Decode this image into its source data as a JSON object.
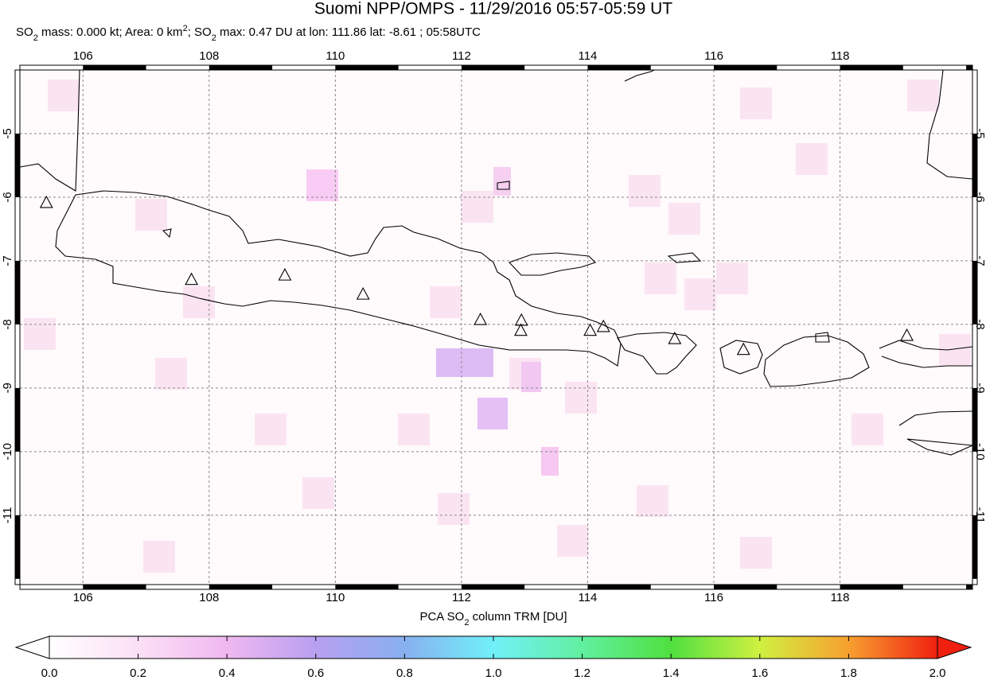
{
  "chart_data": {
    "type": "map",
    "title": "Suomi NPP/OMPS - 11/29/2016 05:57-05:59 UT",
    "subtitle_parts": [
      {
        "text": "SO"
      },
      {
        "text": "2",
        "style": "sub"
      },
      {
        "text": " mass: 0.000 kt; Area: 0 km"
      },
      {
        "text": "2",
        "style": "sup"
      },
      {
        "text": "; SO"
      },
      {
        "text": "2",
        "style": "sub"
      },
      {
        "text": " max: 0.47 DU at lon: 111.86 lat: -8.61 ; 05:58UTC"
      }
    ],
    "xlim": [
      105,
      120.1
    ],
    "ylim": [
      -12.09,
      -4
    ],
    "xticks": [
      106,
      108,
      110,
      112,
      114,
      116,
      118
    ],
    "yticks": [
      -5,
      -6,
      -7,
      -8,
      -9,
      -10,
      -11
    ],
    "grid": true,
    "volcanoes": {
      "lon": [
        105.42,
        107.72,
        109.2,
        110.44,
        112.3,
        112.95,
        112.94,
        114.04,
        114.25,
        115.38,
        116.47,
        119.06
      ],
      "lat": [
        -6.1,
        -7.31,
        -7.24,
        -7.54,
        -7.94,
        -7.95,
        -8.11,
        -8.11,
        -8.05,
        -8.24,
        -8.41,
        -8.19
      ]
    },
    "colorbar": {
      "label_parts": [
        {
          "text": "PCA SO"
        },
        {
          "text": "2",
          "style": "sub"
        },
        {
          "text": " column TRM [DU]"
        }
      ],
      "lim": [
        0,
        2
      ],
      "ticks": [
        {
          "value": 0,
          "label": "0.0"
        },
        {
          "value": 0.2,
          "label": "0.2"
        },
        {
          "value": 0.4,
          "label": "0.4"
        },
        {
          "value": 0.6,
          "label": "0.6"
        },
        {
          "value": 0.8,
          "label": "0.8"
        },
        {
          "value": 1,
          "label": "1.0"
        },
        {
          "value": 1.2,
          "label": "1.2"
        },
        {
          "value": 1.4,
          "label": "1.4"
        },
        {
          "value": 1.6,
          "label": "1.6"
        },
        {
          "value": 1.8,
          "label": "1.8"
        },
        {
          "value": 2,
          "label": "2.0"
        }
      ],
      "colors": [
        "#ffffff",
        "#fbe0f5",
        "#f0b8f0",
        "#b8a0f0",
        "#88b0f0",
        "#70f0f8",
        "#60f0a0",
        "#50e040",
        "#d0f040",
        "#f8a030",
        "#f02010"
      ]
    }
  }
}
